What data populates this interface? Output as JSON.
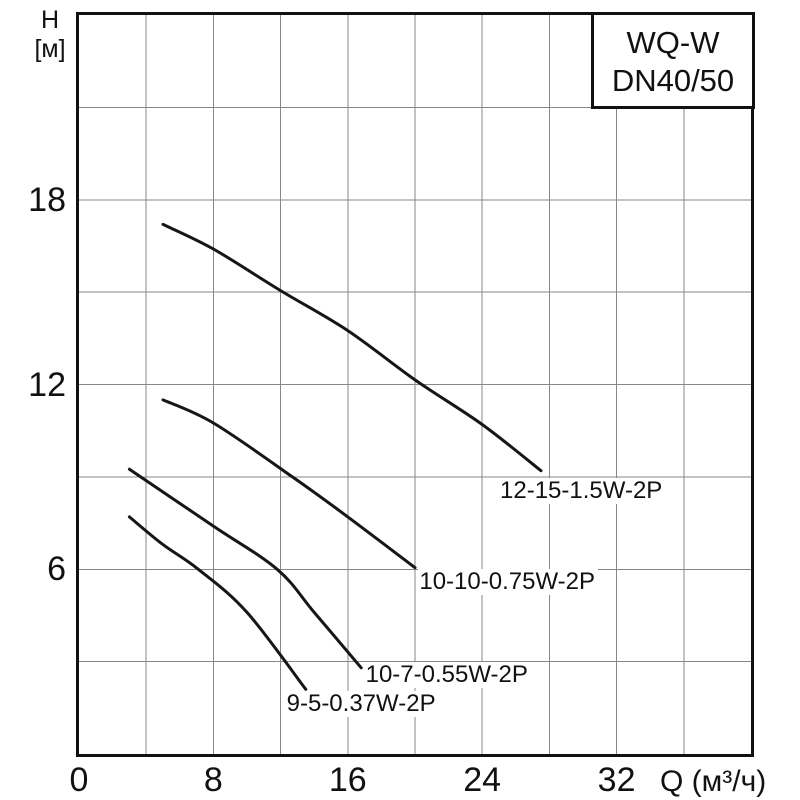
{
  "colors": {
    "background": "#ffffff",
    "line": "#161616",
    "grid": "#878787",
    "text": "#111111"
  },
  "figure": {
    "y_axis_title_line1": "H",
    "y_axis_title_line2": "[м]",
    "x_axis_title": "Q (м³/ч)",
    "title_box_line1": "WQ-W",
    "title_box_line2": "DN40/50"
  },
  "chart_data": {
    "type": "line",
    "title": "WQ-W DN40/50",
    "xlabel": "Q (м³/ч)",
    "ylabel": "H [м]",
    "xlim": [
      0,
      40
    ],
    "ylim": [
      0,
      24
    ],
    "grid": true,
    "x_grid_step": 4,
    "y_grid_step": 3,
    "x_tick_values": [
      0,
      8,
      16,
      24,
      32
    ],
    "x_tick_labels": [
      "0",
      "8",
      "16",
      "24",
      "32"
    ],
    "y_tick_values": [
      6,
      12,
      18
    ],
    "y_tick_labels": [
      "6",
      "12",
      "18"
    ],
    "legend_position": "inline-labels",
    "series": [
      {
        "name": "12-15-1.5W-2P",
        "points": [
          [
            5,
            17.2
          ],
          [
            8,
            16.4
          ],
          [
            12,
            15.05
          ],
          [
            16,
            13.75
          ],
          [
            20,
            12.15
          ],
          [
            24,
            10.7
          ],
          [
            27.5,
            9.2
          ]
        ],
        "label_pos": [
          25.0,
          8.95
        ]
      },
      {
        "name": "10-10-0.75W-2P",
        "points": [
          [
            5,
            11.5
          ],
          [
            8,
            10.75
          ],
          [
            12.7,
            9.0
          ],
          [
            16,
            7.7
          ],
          [
            20,
            6.05
          ]
        ],
        "label_pos": [
          20.2,
          6.0
        ]
      },
      {
        "name": "10-7-0.55W-2P",
        "points": [
          [
            3,
            9.25
          ],
          [
            8,
            7.4
          ],
          [
            11.8,
            6.0
          ],
          [
            14,
            4.6
          ],
          [
            16.8,
            2.8
          ]
        ],
        "label_pos": [
          17.0,
          3.0
        ]
      },
      {
        "name": "9-5-0.37W-2P",
        "points": [
          [
            3,
            7.7
          ],
          [
            5,
            6.8
          ],
          [
            7.1,
            6.0
          ],
          [
            10,
            4.6
          ],
          [
            13.5,
            2.1
          ]
        ],
        "label_pos": [
          12.3,
          2.05
        ]
      }
    ]
  }
}
